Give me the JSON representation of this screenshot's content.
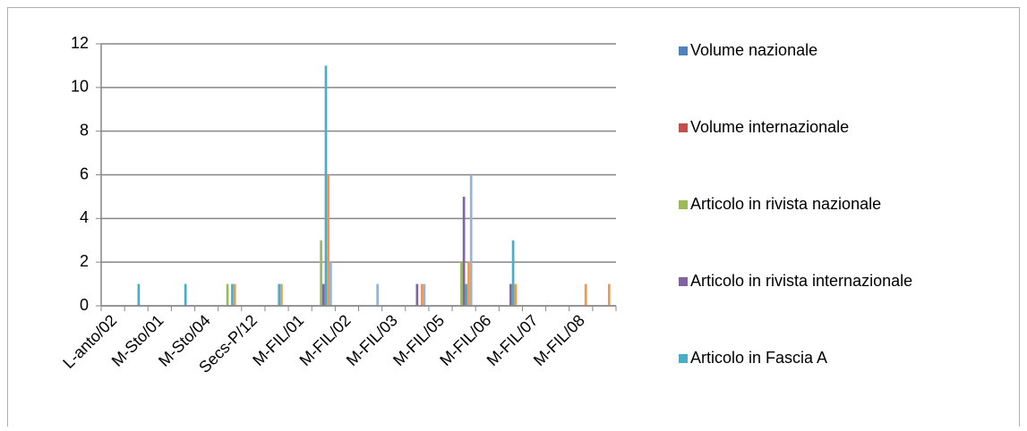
{
  "chart_data": {
    "type": "bar",
    "categories": [
      "L-anto/02",
      null,
      "M-Sto/01",
      null,
      "M-Sto/04",
      null,
      "Secs-P/12",
      null,
      "M-FIL/01",
      null,
      "M-FIL/02",
      null,
      "M-FIL/03",
      null,
      "M-FIL/05",
      null,
      "M-FIL/06",
      null,
      "M-FIL/07",
      null,
      "M-FIL/08",
      null
    ],
    "series": [
      {
        "name": "Volume nazionale",
        "color": "#4f81bd",
        "values": [
          0,
          0,
          0,
          0,
          0,
          0,
          0,
          0,
          0,
          0,
          0,
          0,
          0,
          0,
          0,
          0,
          0,
          0,
          0,
          0,
          0,
          0
        ]
      },
      {
        "name": "Volume internazionale",
        "color": "#c0504d",
        "values": [
          0,
          0,
          0,
          0,
          0,
          0,
          0,
          0,
          0,
          0,
          0,
          0,
          0,
          0,
          0,
          0,
          0,
          0,
          0,
          0,
          0,
          0
        ]
      },
      {
        "name": "Articolo in rivista nazionale",
        "color": "#9bbb59",
        "values": [
          0,
          0,
          0,
          0,
          0,
          1,
          0,
          0,
          0,
          3,
          0,
          0,
          0,
          0,
          0,
          2,
          0,
          0,
          0,
          0,
          0,
          0
        ]
      },
      {
        "name": "Articolo in rivista internazionale",
        "color": "#8064a2",
        "values": [
          0,
          0,
          0,
          0,
          0,
          0,
          0,
          0,
          0,
          1,
          0,
          0,
          0,
          1,
          0,
          5,
          0,
          1,
          0,
          0,
          0,
          0
        ]
      },
      {
        "name": "Articolo in Fascia A",
        "color": "#4bacc6",
        "values": [
          0,
          1,
          0,
          1,
          0,
          1,
          0,
          1,
          0,
          11,
          0,
          0,
          0,
          0,
          0,
          1,
          0,
          3,
          0,
          0,
          0,
          0
        ]
      },
      {
        "color": "#f79646",
        "values": [
          0,
          0,
          0,
          0,
          0,
          1,
          0,
          1,
          0,
          6,
          0,
          0,
          0,
          1,
          0,
          2,
          0,
          1,
          0,
          0,
          1,
          1
        ]
      },
      {
        "color": "#95b3d7",
        "values": [
          0,
          0,
          0,
          0,
          0,
          0,
          0,
          0,
          0,
          2,
          0,
          1,
          0,
          1,
          0,
          6,
          0,
          0,
          0,
          0,
          0,
          0
        ]
      }
    ],
    "ylim": [
      0,
      12
    ],
    "yticks": [
      0,
      2,
      4,
      6,
      8,
      10,
      12
    ],
    "grid": true,
    "legend": "right"
  }
}
